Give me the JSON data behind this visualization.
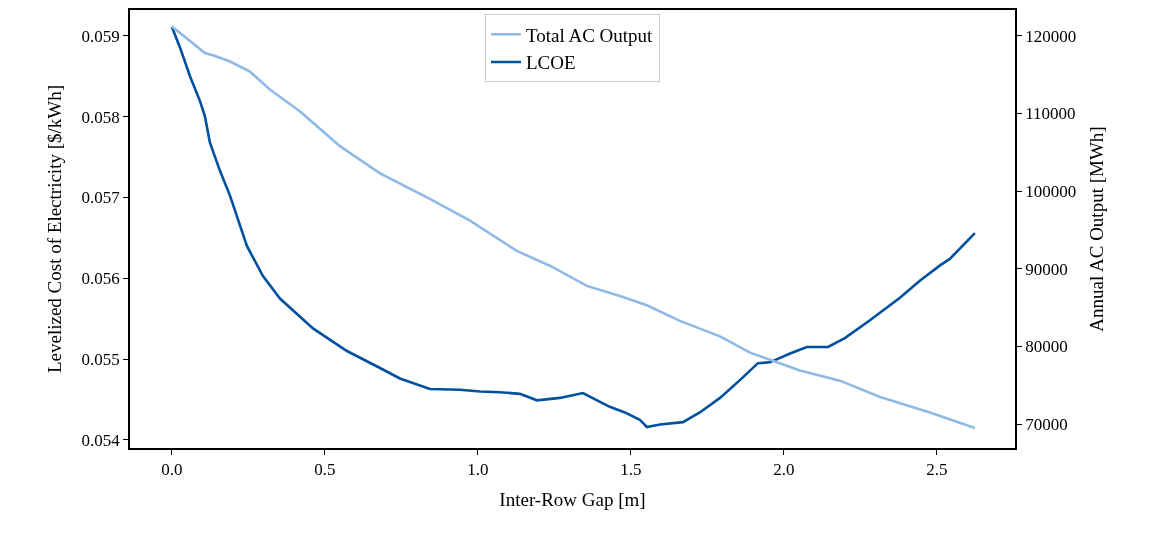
{
  "chart_data": {
    "type": "line",
    "xlabel": "Inter-Row Gap [m]",
    "ylabel": "Levelized Cost of Electricity [$/kWh]",
    "y2label": "Annual AC Output [MWh]",
    "series": [
      {
        "name": "Total AC Output",
        "color": "#8fb9e6",
        "axis": "y2",
        "x": [
          0,
          0.108,
          0.141,
          0.19,
          0.255,
          0.32,
          0.418,
          0.549,
          0.68,
          0.843,
          0.974,
          1.127,
          1.235,
          1.356,
          1.464,
          1.552,
          1.66,
          1.791,
          1.889,
          2.052,
          2.183,
          2.314,
          2.477,
          2.624
        ],
        "values": [
          121200,
          117800,
          117400,
          116700,
          115400,
          113100,
          110300,
          105800,
          102300,
          99000,
          96200,
          92300,
          90400,
          87800,
          86500,
          85300,
          83300,
          81300,
          79200,
          76900,
          75600,
          73500,
          71500,
          69500
        ]
      },
      {
        "name": "LCOE",
        "color": "#0050a0",
        "x": [
          0,
          0.026,
          0.059,
          0.092,
          0.108,
          0.124,
          0.157,
          0.19,
          0.245,
          0.297,
          0.353,
          0.461,
          0.572,
          0.68,
          0.745,
          0.843,
          0.941,
          1.007,
          1.072,
          1.137,
          1.193,
          1.268,
          1.343,
          1.399,
          1.431,
          1.48,
          1.529,
          1.552,
          1.595,
          1.67,
          1.725,
          1.791,
          1.856,
          1.915,
          1.954,
          2.02,
          2.075,
          2.144,
          2.199,
          2.281,
          2.379,
          2.444,
          2.51,
          2.542,
          2.624
        ],
        "values": [
          0.05911,
          0.05886,
          0.0585,
          0.05819,
          0.058,
          0.05768,
          0.05733,
          0.05702,
          0.0564,
          0.05603,
          0.05575,
          0.05538,
          0.0551,
          0.05489,
          0.05476,
          0.05463,
          0.05462,
          0.0546,
          0.05459,
          0.05457,
          0.05449,
          0.05452,
          0.05458,
          0.05447,
          0.05441,
          0.05434,
          0.05425,
          0.05416,
          0.05419,
          0.05422,
          0.05434,
          0.05452,
          0.05474,
          0.05495,
          0.05496,
          0.05507,
          0.05515,
          0.05515,
          0.05526,
          0.05548,
          0.05576,
          0.05597,
          0.05616,
          0.05624,
          0.05656
        ]
      }
    ],
    "xlim": [
      -0.137,
      2.755
    ],
    "xticks": [
      {
        "value": 0,
        "label": "0.0"
      },
      {
        "value": 0.5,
        "label": "0.5"
      },
      {
        "value": 1,
        "label": "1.0"
      },
      {
        "value": 1.5,
        "label": "1.5"
      },
      {
        "value": 2,
        "label": "2.0"
      },
      {
        "value": 2.5,
        "label": "2.5"
      }
    ],
    "ylim": [
      0.0539,
      0.05932
    ],
    "yticks": [
      0.054,
      0.055,
      0.056,
      0.057,
      0.058,
      0.059
    ],
    "y2lim": [
      66923,
      123333
    ],
    "y2ticks": [
      70000,
      80000,
      90000,
      100000,
      110000,
      120000
    ],
    "legend": "top",
    "marker": "none",
    "line_style": "solid"
  }
}
